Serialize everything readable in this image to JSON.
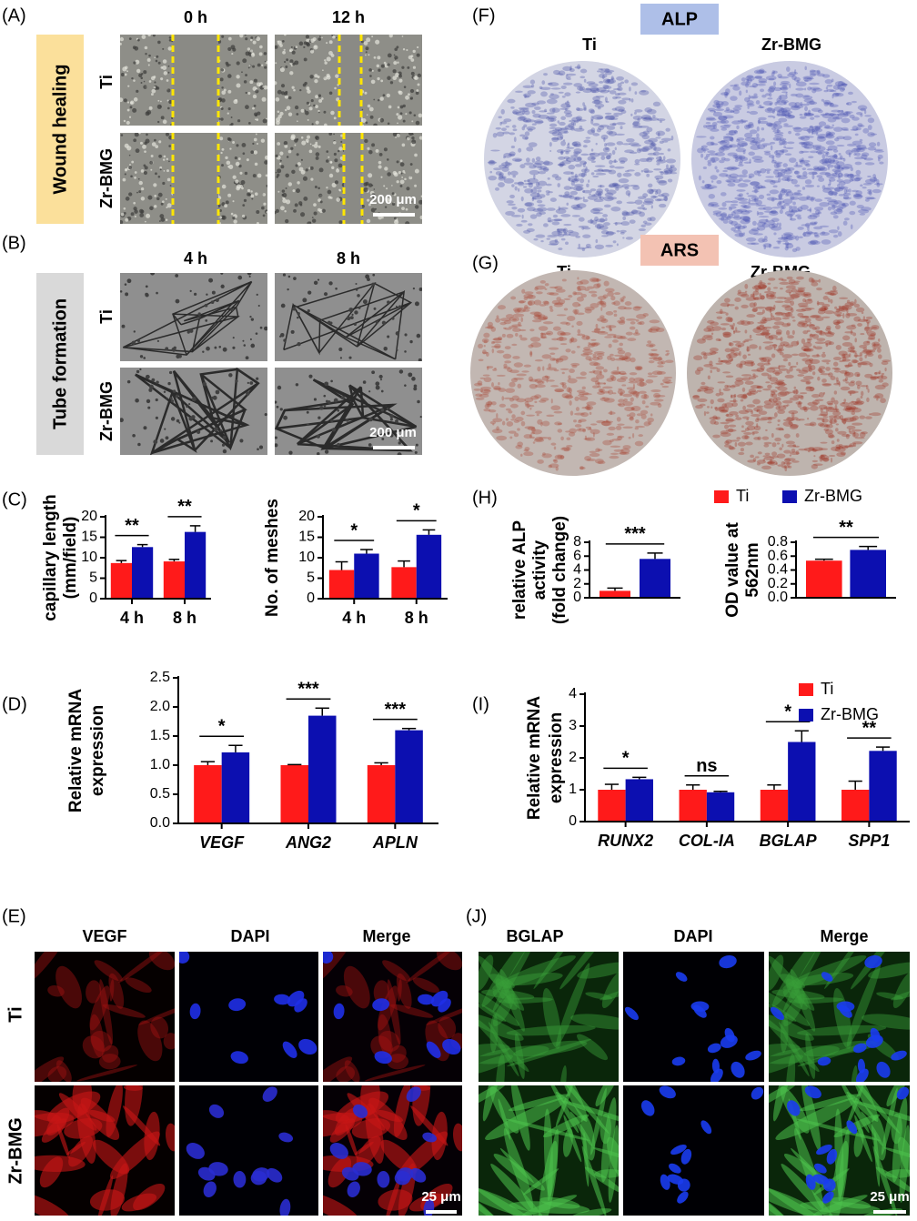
{
  "panels": {
    "A": {
      "label": "(A)",
      "side": "Wound healing",
      "columns": [
        "0 h",
        "12 h"
      ],
      "rows": [
        "Ti",
        "Zr-BMG"
      ],
      "scale": "200 μm"
    },
    "B": {
      "label": "(B)",
      "side": "Tube formation",
      "columns": [
        "4 h",
        "8 h"
      ],
      "rows": [
        "Ti",
        "Zr-BMG"
      ],
      "scale": "200 μm"
    },
    "E": {
      "label": "(E)",
      "columns": [
        "VEGF",
        "DAPI",
        "Merge"
      ],
      "rows": [
        "Ti",
        "Zr-BMG"
      ],
      "scale": "25 μm"
    },
    "F": {
      "label": "(F)",
      "tag": "ALP",
      "columns": [
        "Ti",
        "Zr-BMG"
      ]
    },
    "G": {
      "label": "(G)",
      "tag": "ARS",
      "columns": [
        "Ti",
        "Zr-BMG"
      ]
    },
    "J": {
      "label": "(J)",
      "columns": [
        "BGLAP",
        "DAPI",
        "Merge"
      ],
      "scale": "25 μm"
    }
  },
  "chart_data": [
    {
      "type": "bar",
      "panel": "(C)",
      "ylabel": [
        "capillary length",
        "(mm/field)"
      ],
      "categories": [
        "4 h",
        "8 h"
      ],
      "series": [
        {
          "color": "#ff1a1a",
          "values": [
            8.7,
            9.1
          ],
          "errors": [
            0.6,
            0.5
          ]
        },
        {
          "color": "#0c0fb0",
          "values": [
            12.6,
            16.3
          ],
          "errors": [
            0.6,
            1.5
          ]
        }
      ],
      "significance": [
        "**",
        "**"
      ],
      "ylim": [
        0,
        20
      ],
      "yticks": [
        0,
        5,
        10,
        15,
        20
      ]
    },
    {
      "type": "bar",
      "ylabel": [
        "No. of  meshes"
      ],
      "categories": [
        "4 h",
        "8 h"
      ],
      "series": [
        {
          "color": "#ff1a1a",
          "values": [
            7.0,
            7.7
          ],
          "errors": [
            2.0,
            1.5
          ]
        },
        {
          "color": "#0c0fb0",
          "values": [
            11.0,
            15.6
          ],
          "errors": [
            1.0,
            1.2
          ]
        }
      ],
      "significance": [
        "*",
        "*"
      ],
      "ylim": [
        0,
        20
      ],
      "yticks": [
        0,
        5,
        10,
        15,
        20
      ]
    },
    {
      "type": "bar",
      "panel": "(D)",
      "ylabel": [
        "Relative mRNA",
        "expression"
      ],
      "italic": true,
      "categories": [
        "VEGF",
        "ANG2",
        "APLN"
      ],
      "series": [
        {
          "color": "#ff1a1a",
          "values": [
            1.0,
            1.0,
            1.0
          ],
          "errors": [
            0.06,
            0.01,
            0.04
          ]
        },
        {
          "color": "#0c0fb0",
          "values": [
            1.22,
            1.85,
            1.6
          ],
          "errors": [
            0.12,
            0.13,
            0.03
          ]
        }
      ],
      "significance": [
        "*",
        "***",
        "***"
      ],
      "ylim": [
        0,
        2.5
      ],
      "yticks": [
        {
          "value": 0,
          "label": "0.0"
        },
        0.5,
        {
          "value": 1,
          "label": "1.0"
        },
        1.5,
        {
          "value": 2,
          "label": "2.0"
        },
        2.5
      ]
    },
    {
      "type": "bar",
      "panel": "(H)",
      "ylabel": [
        "relative ALP",
        "activity",
        "(fold change)"
      ],
      "legend": "top",
      "categories": [
        null
      ],
      "series": [
        {
          "name": "Ti",
          "color": "#ff1a1a",
          "values": [
            1.0
          ],
          "errors": [
            0.4
          ]
        },
        {
          "name": "Zr-BMG",
          "color": "#0c0fb0",
          "values": [
            5.6
          ],
          "errors": [
            0.85
          ]
        }
      ],
      "significance": [
        "***"
      ],
      "ylim": [
        0,
        8
      ],
      "yticks": [
        0,
        2,
        4,
        6,
        8
      ]
    },
    {
      "type": "bar",
      "ylabel": [
        "OD value at",
        "562nm"
      ],
      "categories": [
        null
      ],
      "series": [
        {
          "color": "#ff1a1a",
          "values": [
            0.535
          ],
          "errors": [
            0.02
          ]
        },
        {
          "color": "#0c0fb0",
          "values": [
            0.69
          ],
          "errors": [
            0.05
          ]
        }
      ],
      "significance": [
        "**"
      ],
      "ylim": [
        0,
        0.8
      ],
      "yticks": [
        {
          "value": 0,
          "label": "0.0"
        },
        0.2,
        0.4,
        0.6,
        0.8
      ]
    },
    {
      "type": "bar",
      "panel": "(I)",
      "ylabel": [
        "Relative mRNA",
        "expression"
      ],
      "italic": true,
      "legend": "upper right",
      "categories": [
        "RUNX2",
        "COL-IA",
        "BGLAP",
        "SPP1"
      ],
      "series": [
        {
          "name": "Ti",
          "color": "#ff1a1a",
          "values": [
            1.0,
            1.0,
            1.0,
            1.0
          ],
          "errors": [
            0.17,
            0.15,
            0.15,
            0.27
          ]
        },
        {
          "name": "Zr-BMG",
          "color": "#0c0fb0",
          "values": [
            1.33,
            0.92,
            2.5,
            2.22
          ],
          "errors": [
            0.06,
            0.03,
            0.35,
            0.12
          ]
        }
      ],
      "significance": [
        "*",
        "ns",
        "*",
        "**"
      ],
      "ylim": [
        0,
        4
      ],
      "yticks": [
        0,
        1,
        2,
        3,
        4
      ]
    }
  ]
}
